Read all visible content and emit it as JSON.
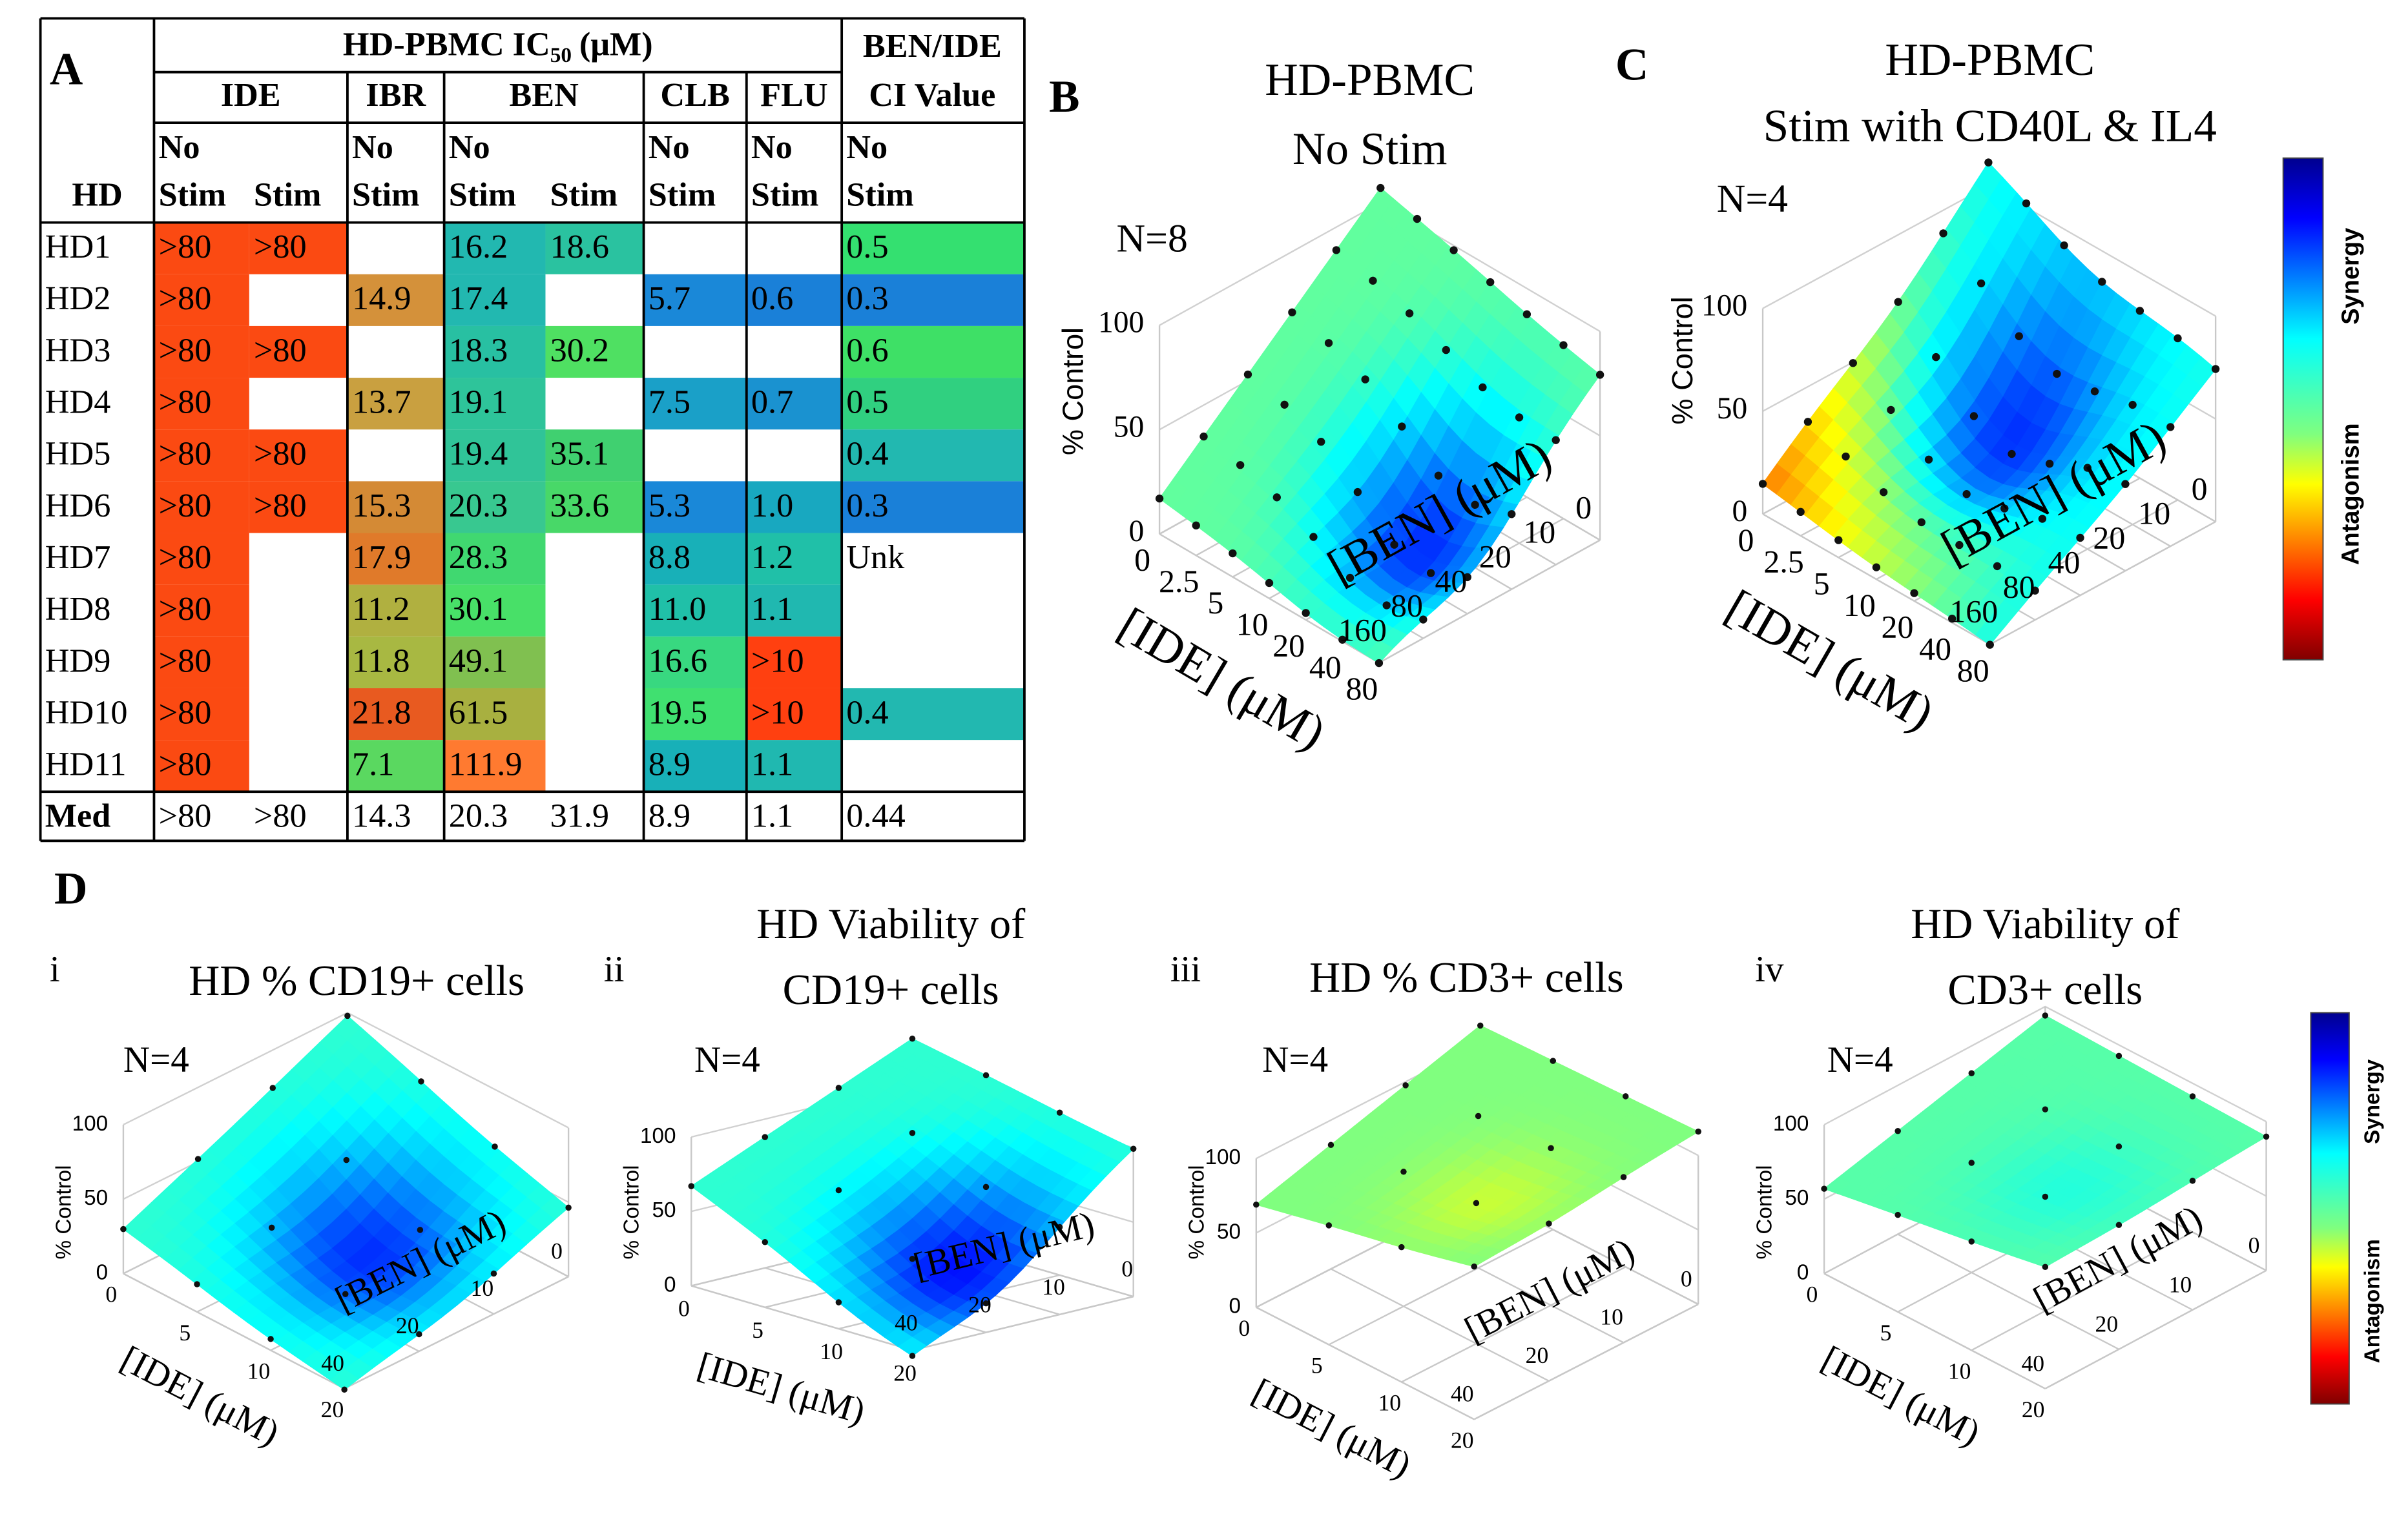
{
  "table": {
    "panel": "A",
    "header": {
      "title": "HD-PBMC IC",
      "title_sub": "50",
      "title_unit": "(μM)",
      "drug_groups": [
        "IDE",
        "IBR",
        "BEN",
        "CLB",
        "FLU"
      ],
      "ci_title": [
        "BEN/IDE",
        "CI Value"
      ],
      "subheader": [
        [
          "HD"
        ],
        [
          "No",
          "Stim"
        ],
        [
          "Stim"
        ],
        [
          "No",
          "Stim"
        ],
        [
          "No",
          "Stim"
        ],
        [
          "Stim"
        ],
        [
          "No",
          "Stim"
        ],
        [
          "No",
          "Stim"
        ],
        [
          "No",
          "Stim"
        ]
      ]
    },
    "rows": [
      {
        "cells": [
          "HD1",
          ">80",
          ">80",
          null,
          "16.2",
          "18.6",
          null,
          null,
          "0.5"
        ],
        "fills": [
          null,
          "#fb4a12",
          "#fb4a12",
          null,
          "#22b8b0",
          "#2ac2a0",
          null,
          null,
          "#34e070"
        ]
      },
      {
        "cells": [
          "HD2",
          ">80",
          null,
          "14.9",
          "17.4",
          null,
          "5.7",
          "0.6",
          "0.3"
        ],
        "fills": [
          null,
          "#fb4a12",
          null,
          "#d4913a",
          "#22b8b0",
          null,
          "#1a88d8",
          "#1a80d8",
          "#1a80d8"
        ]
      },
      {
        "cells": [
          "HD3",
          ">80",
          ">80",
          null,
          "18.3",
          "30.2",
          null,
          null,
          "0.6"
        ],
        "fills": [
          null,
          "#fb4a12",
          "#fb4a12",
          null,
          "#28c0a2",
          "#4fe062",
          null,
          null,
          "#3ee066"
        ]
      },
      {
        "cells": [
          "HD4",
          ">80",
          null,
          "13.7",
          "19.1",
          null,
          "7.5",
          "0.7",
          "0.5"
        ],
        "fills": [
          null,
          "#fb4a12",
          null,
          "#c9a040",
          "#2ec49a",
          null,
          "#1aa0c8",
          "#1a92d0",
          "#30d080"
        ]
      },
      {
        "cells": [
          "HD5",
          ">80",
          ">80",
          null,
          "19.4",
          "35.1",
          null,
          null,
          "0.4"
        ],
        "fills": [
          null,
          "#fb4a12",
          "#fb4a12",
          null,
          "#30c498",
          "#40d070",
          null,
          null,
          "#22b8b0"
        ]
      },
      {
        "cells": [
          "HD6",
          ">80",
          ">80",
          "15.3",
          "20.3",
          "33.6",
          "5.3",
          "1.0",
          "0.3"
        ],
        "fills": [
          null,
          "#fb4a12",
          "#fb4a12",
          "#d48a35",
          "#38c890",
          "#48d868",
          "#1a88d8",
          "#18a8c0",
          "#1a80d8"
        ]
      },
      {
        "cells": [
          "HD7",
          ">80",
          null,
          "17.9",
          "28.3",
          null,
          "8.8",
          "1.2",
          "Unk"
        ],
        "fills": [
          null,
          "#fb4a12",
          null,
          "#e07a2a",
          "#40d870",
          null,
          "#18b0b8",
          "#20c0a8",
          null
        ]
      },
      {
        "cells": [
          "HD8",
          ">80",
          null,
          "11.2",
          "30.1",
          null,
          "11.0",
          "1.1",
          null
        ],
        "fills": [
          null,
          "#fb4a12",
          null,
          "#b0b040",
          "#48e068",
          null,
          "#20c0a8",
          "#20b8b0",
          null
        ]
      },
      {
        "cells": [
          "HD9",
          ">80",
          null,
          "11.8",
          "49.1",
          null,
          "16.6",
          ">10",
          null
        ],
        "fills": [
          null,
          "#fb4a12",
          null,
          "#a8b842",
          "#80c050",
          null,
          "#38d880",
          "#ff4010",
          null
        ]
      },
      {
        "cells": [
          "HD10",
          ">80",
          null,
          "21.8",
          "61.5",
          null,
          "19.5",
          ">10",
          "0.4"
        ],
        "fills": [
          null,
          "#fb4a12",
          null,
          "#e85a20",
          "#a8b040",
          null,
          "#40e070",
          "#ff4010",
          "#22b8b0"
        ]
      },
      {
        "cells": [
          "HD11",
          ">80",
          null,
          "7.1",
          "111.9",
          null,
          "8.9",
          "1.1",
          null
        ],
        "fills": [
          null,
          "#fb4a12",
          null,
          "#5ad860",
          "#ff7a30",
          null,
          "#18b0b8",
          "#20b8b0",
          null
        ]
      },
      {
        "cells": [
          "Med",
          ">80",
          ">80",
          "14.3",
          "20.3",
          "31.9",
          "8.9",
          "1.1",
          "0.44"
        ],
        "fills": [
          null,
          null,
          null,
          null,
          null,
          null,
          null,
          null,
          null
        ]
      }
    ]
  },
  "panel_d": "D",
  "plots": [
    {
      "panel": "B",
      "title": [
        "HD-PBMC",
        "No Stim"
      ],
      "n": "N=8",
      "z_label": "% Control",
      "x_label": "[IDE] (μM)",
      "y_label": "[BEN] (μM)",
      "zlim": [
        0,
        100
      ],
      "z_ticks": [
        0,
        50,
        100
      ],
      "ide_ticks": [
        0,
        2.5,
        5,
        10,
        20,
        40,
        80
      ],
      "ben_ticks": [
        160,
        80,
        40,
        20,
        10,
        0
      ]
    },
    {
      "panel": "C",
      "title": [
        "HD-PBMC",
        "Stim with CD40L & IL4"
      ],
      "n": "N=4",
      "z_label": "% Control",
      "x_label": "[IDE] (μM)",
      "y_label": "[BEN] (μM)",
      "zlim": [
        0,
        100
      ],
      "z_ticks": [
        0,
        50,
        100
      ],
      "ide_ticks": [
        0,
        2.5,
        5,
        10,
        20,
        40,
        80
      ],
      "ben_ticks": [
        160,
        80,
        40,
        20,
        10,
        0
      ]
    },
    {
      "panel": "i",
      "title": [
        "HD % CD19+ cells"
      ],
      "n": "N=4",
      "z_label": "% Control",
      "x_label": "[IDE] (μM)",
      "y_label": "[BEN] (μM)",
      "zlim": [
        0,
        100
      ],
      "z_ticks": [
        0,
        50,
        100
      ],
      "ide_ticks": [
        0,
        5,
        10,
        20
      ],
      "ben_ticks": [
        40,
        20,
        10,
        0
      ]
    },
    {
      "panel": "ii",
      "title": [
        "HD Viability of",
        "CD19+ cells"
      ],
      "n": "N=4",
      "z_label": "% Control",
      "x_label": "[IDE] (μM)",
      "y_label": "[BEN] (μM)",
      "zlim": [
        0,
        100
      ],
      "z_ticks": [
        0,
        50,
        100
      ],
      "ide_ticks": [
        0,
        5,
        10,
        20
      ],
      "ben_ticks": [
        40,
        20,
        10,
        0
      ]
    },
    {
      "panel": "iii",
      "title": [
        "HD % CD3+ cells"
      ],
      "n": "N=4",
      "z_label": "% Control",
      "x_label": "[IDE] (μM)",
      "y_label": "[BEN] (μM)",
      "zlim": [
        0,
        100
      ],
      "z_ticks": [
        0,
        50,
        100
      ],
      "ide_ticks": [
        0,
        5,
        10,
        20
      ],
      "ben_ticks": [
        40,
        20,
        10,
        0
      ]
    },
    {
      "panel": "iv",
      "title": [
        "HD Viability of",
        "CD3+ cells"
      ],
      "n": "N=4",
      "z_label": "% Control",
      "x_label": "[IDE] (μM)",
      "y_label": "[BEN] (μM)",
      "zlim": [
        0,
        100
      ],
      "z_ticks": [
        0,
        50,
        100
      ],
      "ide_ticks": [
        0,
        5,
        10,
        20
      ],
      "ben_ticks": [
        40,
        20,
        10,
        0
      ]
    }
  ],
  "colorbars": [
    {
      "top": "Synergy",
      "bottom": "Antagonism"
    },
    {
      "top": "Synergy",
      "bottom": "Antagonism"
    }
  ]
}
